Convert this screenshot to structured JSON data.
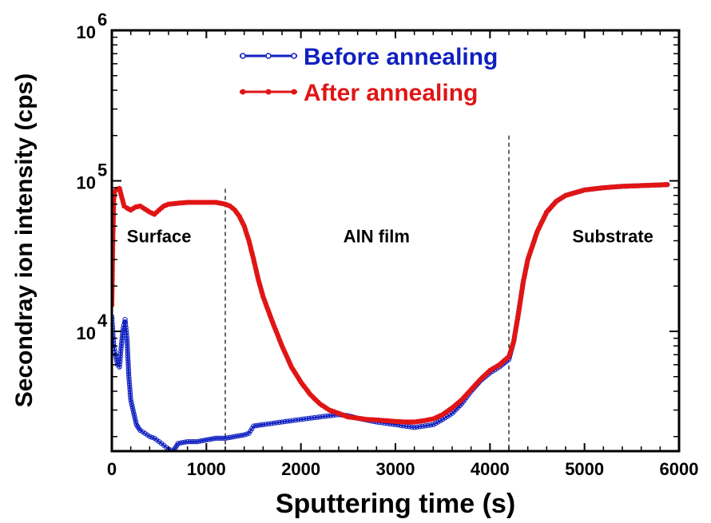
{
  "chart_data": {
    "type": "line",
    "xlabel": "Sputtering time (s)",
    "ylabel": "Secondray ion intensity (cps)",
    "xlim": [
      0,
      6000
    ],
    "ylim": [
      1600,
      1000000
    ],
    "y_scale": "log",
    "x_ticks": [
      0,
      1000,
      2000,
      3000,
      4000,
      5000,
      6000
    ],
    "y_ticks": [
      {
        "value": 10000,
        "base": "10",
        "exp": "4"
      },
      {
        "value": 100000,
        "base": "10",
        "exp": "5"
      },
      {
        "value": 1000000,
        "base": "10",
        "exp": "6"
      }
    ],
    "legend_position": "top-center",
    "annotations": [
      {
        "text": "Surface",
        "x": 500,
        "y": 42000
      },
      {
        "text": "AlN film",
        "x": 2800,
        "y": 42000
      },
      {
        "text": "Substrate",
        "x": 5300,
        "y": 42000
      }
    ],
    "dividers": [
      1200,
      4200
    ],
    "series": [
      {
        "name": "Before annealing",
        "color": "#1020c0",
        "marker": "open-circle",
        "x": [
          0,
          20,
          40,
          60,
          80,
          100,
          120,
          140,
          160,
          180,
          200,
          230,
          260,
          300,
          350,
          400,
          450,
          500,
          550,
          600,
          650,
          700,
          800,
          900,
          1000,
          1100,
          1200,
          1300,
          1400,
          1450,
          1500,
          1600,
          1800,
          2000,
          2200,
          2400,
          2500,
          2600,
          2800,
          3000,
          3200,
          3400,
          3500,
          3600,
          3700,
          3800,
          3900,
          4000,
          4100,
          4200,
          4250,
          4300,
          4350,
          4400,
          4500,
          4600,
          4700,
          4800,
          5000,
          5200,
          5400,
          5600,
          5800,
          5900
        ],
        "y": [
          12500,
          8000,
          7000,
          6000,
          5800,
          8000,
          10500,
          12000,
          9000,
          5000,
          3500,
          2900,
          2400,
          2200,
          2100,
          2000,
          1950,
          1850,
          1750,
          1650,
          1600,
          1800,
          1850,
          1850,
          1900,
          1950,
          1950,
          2000,
          2050,
          2100,
          2350,
          2400,
          2500,
          2600,
          2700,
          2800,
          2750,
          2650,
          2500,
          2400,
          2300,
          2400,
          2600,
          2850,
          3300,
          4000,
          4700,
          5300,
          5800,
          6500,
          8500,
          13000,
          21000,
          30000,
          46000,
          62000,
          73000,
          80000,
          87000,
          90000,
          92000,
          93000,
          94000,
          94500
        ]
      },
      {
        "name": "After annealing",
        "color": "#e01515",
        "marker": "filled-circle",
        "x": [
          0,
          10,
          20,
          30,
          50,
          80,
          100,
          130,
          160,
          200,
          250,
          300,
          350,
          400,
          450,
          500,
          550,
          600,
          700,
          800,
          900,
          1000,
          1100,
          1200,
          1250,
          1300,
          1350,
          1400,
          1450,
          1500,
          1550,
          1600,
          1700,
          1800,
          1900,
          2000,
          2100,
          2200,
          2300,
          2400,
          2500,
          2600,
          2700,
          2800,
          2900,
          3000,
          3100,
          3200,
          3300,
          3400,
          3500,
          3600,
          3700,
          3800,
          3900,
          4000,
          4100,
          4200,
          4250,
          4300,
          4350,
          4400,
          4500,
          4600,
          4700,
          4800,
          5000,
          5200,
          5400,
          5600,
          5800,
          5900
        ],
        "y": [
          15000,
          40000,
          75000,
          85000,
          88000,
          89000,
          80000,
          68000,
          66000,
          64000,
          67000,
          68000,
          65000,
          62000,
          60000,
          64000,
          68000,
          70000,
          71000,
          72000,
          72000,
          72000,
          72000,
          70000,
          68000,
          64000,
          58000,
          50000,
          40000,
          30000,
          22000,
          17000,
          11500,
          8000,
          5800,
          4600,
          3800,
          3300,
          3000,
          2850,
          2700,
          2650,
          2600,
          2580,
          2550,
          2520,
          2500,
          2500,
          2550,
          2620,
          2800,
          3100,
          3500,
          4100,
          4800,
          5500,
          6000,
          6800,
          8500,
          13000,
          21000,
          30000,
          46000,
          62000,
          73000,
          80000,
          87000,
          90000,
          92000,
          93000,
          94000,
          94500
        ]
      }
    ]
  }
}
